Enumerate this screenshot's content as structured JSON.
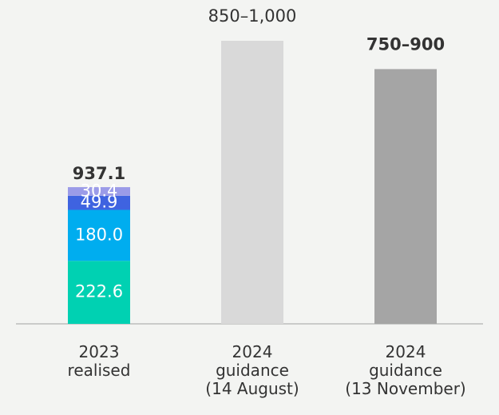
{
  "chart_data": {
    "type": "bar",
    "categories": [
      "2023\nrealised",
      "2024\nguidance\n(14 August)",
      "2024\nguidance\n(13 November)"
    ],
    "series": [
      {
        "color": "#00d1b2",
        "values": [
          222.6,
          null,
          null
        ],
        "value_labels": [
          "222.6",
          null,
          null
        ]
      },
      {
        "color": "#00adef",
        "values": [
          180.0,
          null,
          null
        ],
        "value_labels": [
          "180.0",
          null,
          null
        ]
      },
      {
        "color": "#3f63e0",
        "values": [
          49.9,
          null,
          null
        ],
        "value_labels": [
          "49.9",
          null,
          null
        ]
      },
      {
        "color": "#9b9be8",
        "values": [
          30.4,
          null,
          null
        ],
        "value_labels": [
          "30.4",
          null,
          null
        ]
      }
    ],
    "totals": [
      937.1,
      null,
      null
    ],
    "ranges": [
      null,
      [
        850,
        1000
      ],
      [
        750,
        900
      ]
    ],
    "range_labels": [
      null,
      "850–1,000",
      "750–900"
    ],
    "range_colors": [
      null,
      "#d9d9d9",
      "#a5a5a5"
    ],
    "ylim": [
      0,
      1000
    ]
  }
}
